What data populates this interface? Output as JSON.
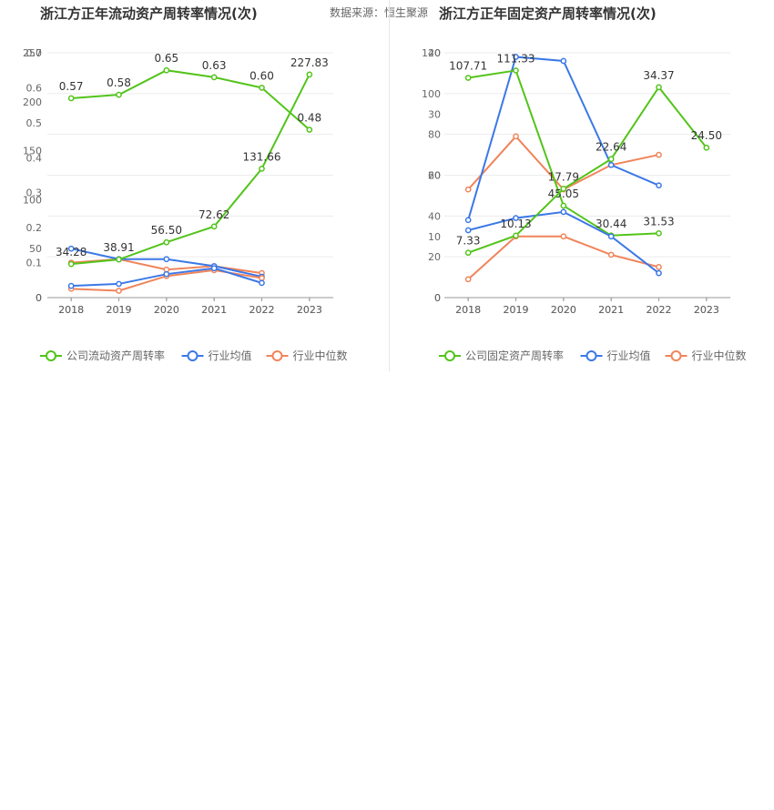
{
  "left": {
    "title": "浙江方正年流动资产周转率情况(次)",
    "source": "数据来源：恒生聚源",
    "legend": [
      "公司流动资产周转率",
      "行业均值",
      "行业中位数"
    ],
    "colors": [
      "#52c41a",
      "#3b78e7",
      "#f0845a"
    ]
  },
  "right": {
    "title": "浙江方正年固定资产周转率情况(次)",
    "legend": [
      "公司固定资产周转率",
      "行业均值",
      "行业中位数"
    ],
    "colors": [
      "#52c41a",
      "#3b78e7",
      "#f0845a"
    ]
  },
  "chart_data": [
    {
      "type": "line",
      "title": "浙江方正年流动资产周转率情况(次)",
      "categories": [
        "2018",
        "2019",
        "2020",
        "2021",
        "2022",
        "2023"
      ],
      "ylim": [
        0,
        0.7
      ],
      "yticks": [
        "0",
        "0.1",
        "0.2",
        "0.3",
        "0.4",
        "0.5",
        "0.6",
        "0.7"
      ],
      "series": [
        {
          "name": "公司流动资产周转率",
          "values": [
            0.57,
            0.58,
            0.65,
            0.63,
            0.6,
            0.48
          ],
          "labels": [
            "0.57",
            "0.58",
            "0.65",
            "0.63",
            "0.60",
            "0.48"
          ]
        },
        {
          "name": "行业均值",
          "values": [
            0.14,
            0.11,
            0.11,
            0.09,
            0.06,
            null
          ]
        },
        {
          "name": "行业中位数",
          "values": [
            0.1,
            0.11,
            0.08,
            0.09,
            0.07,
            null
          ]
        }
      ]
    },
    {
      "type": "line",
      "title": "浙江方正年流动资产周转率情况(次)",
      "categories": [
        "2018",
        "2019",
        "2020",
        "2021",
        "2022",
        "2023"
      ],
      "ylim": [
        0,
        250
      ],
      "yticks": [
        "0",
        "50",
        "100",
        "150",
        "200",
        "250"
      ],
      "series": [
        {
          "name": "公司流动资产周转率",
          "values": [
            34.28,
            38.91,
            56.5,
            72.62,
            131.66,
            227.83
          ],
          "labels": [
            "34.28",
            "38.91",
            "56.50",
            "72.62",
            "131.66",
            "227.83"
          ]
        },
        {
          "name": "行业均值",
          "values": [
            12,
            14,
            24,
            30,
            15,
            null
          ]
        },
        {
          "name": "行业中位数",
          "values": [
            9,
            7,
            22,
            28,
            20,
            null
          ]
        }
      ]
    },
    {
      "type": "line",
      "title": "浙江方正年固定资产周转率情况(次)",
      "categories": [
        "2018",
        "2019",
        "2020",
        "2021",
        "2022",
        "2023"
      ],
      "ylim": [
        0,
        120
      ],
      "yticks": [
        "0",
        "20",
        "40",
        "60",
        "80",
        "100",
        "120"
      ],
      "series": [
        {
          "name": "公司固定资产周转率",
          "values": [
            107.71,
            111.33,
            45.05,
            30.44,
            31.53,
            null
          ],
          "labels": [
            "107.71",
            "111.33",
            "45.05",
            "30.44",
            "31.53",
            ""
          ]
        },
        {
          "name": "行业均值",
          "values": [
            38,
            118,
            116,
            65,
            55,
            null
          ]
        },
        {
          "name": "行业中位数",
          "values": [
            53,
            79,
            53,
            65,
            70,
            null
          ]
        }
      ]
    },
    {
      "type": "line",
      "title": "浙江方正年固定资产周转率情况(次)",
      "categories": [
        "2018",
        "2019",
        "2020",
        "2021",
        "2022",
        "2023"
      ],
      "ylim": [
        0,
        40
      ],
      "yticks": [
        "0",
        "10",
        "20",
        "30",
        "40"
      ],
      "series": [
        {
          "name": "公司固定资产周转率",
          "values": [
            7.33,
            10.13,
            17.79,
            22.64,
            34.37,
            24.5
          ],
          "labels": [
            "7.33",
            "10.13",
            "17.79",
            "22.64",
            "34.37",
            "24.50"
          ]
        },
        {
          "name": "行业均值",
          "values": [
            11,
            13,
            14,
            10,
            4,
            null
          ]
        },
        {
          "name": "行业中位数",
          "values": [
            3,
            10,
            10,
            7,
            5,
            null
          ]
        }
      ]
    }
  ]
}
